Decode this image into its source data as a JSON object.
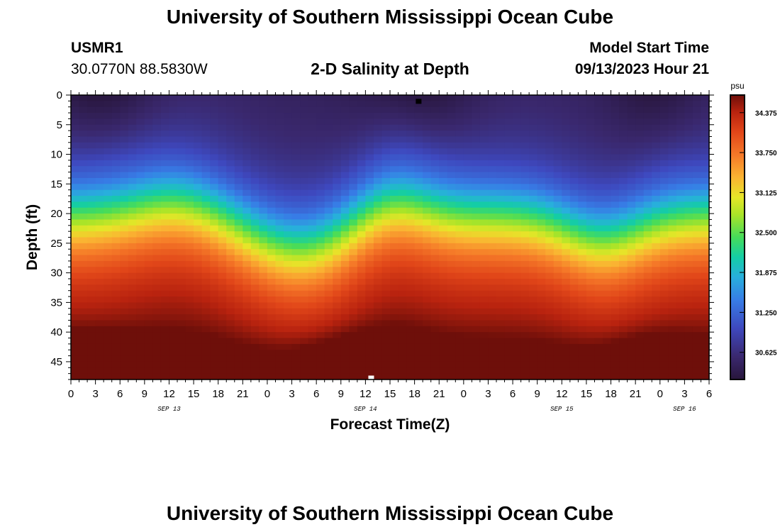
{
  "header": {
    "title": "University of Southern Mississippi Ocean Cube",
    "station": "USMR1",
    "coords": "30.0770N  88.5830W",
    "subtitle": "2-D Salinity at Depth",
    "start_label": "Model Start Time",
    "start_value": "09/13/2023 Hour 21"
  },
  "footer": {
    "title": "University of Southern Mississippi Ocean Cube"
  },
  "chart_data": {
    "type": "heatmap",
    "title": "2-D Salinity at Depth",
    "xlabel": "Forecast Time(Z)",
    "ylabel": "Depth (ft)",
    "x_range_hours": [
      0,
      78
    ],
    "y_range_ft": [
      0,
      48
    ],
    "x_tick_labels": [
      "0",
      "3",
      "6",
      "9",
      "12",
      "15",
      "18",
      "21",
      "0",
      "3",
      "6",
      "9",
      "12",
      "15",
      "18",
      "21",
      "0",
      "3",
      "6",
      "9",
      "12",
      "15",
      "18",
      "21",
      "0",
      "3",
      "6"
    ],
    "x_tick_hours": [
      0,
      3,
      6,
      9,
      12,
      15,
      18,
      21,
      24,
      27,
      30,
      33,
      36,
      39,
      42,
      45,
      48,
      51,
      54,
      57,
      60,
      63,
      66,
      69,
      72,
      75,
      78
    ],
    "day_labels": [
      {
        "text": "SEP 13",
        "hour": 12
      },
      {
        "text": "SEP 14",
        "hour": 36
      },
      {
        "text": "SEP 15",
        "hour": 60
      },
      {
        "text": "SEP 16",
        "hour": 75
      }
    ],
    "y_ticks": [
      0,
      5,
      10,
      15,
      20,
      25,
      30,
      35,
      40,
      45
    ],
    "colorbar": {
      "unit": "psu",
      "min": 30.2,
      "max": 34.65,
      "tick_values": [
        34.375,
        33.75,
        33.125,
        32.5,
        31.875,
        31.25,
        30.625
      ],
      "tick_labels": [
        "34.375",
        "33.750",
        "33.125",
        "32.500",
        "31.875",
        "31.250",
        "30.625"
      ]
    },
    "surface_min_hours": [
      4,
      18,
      42.5,
      72
    ],
    "surface_max_hours": [
      1,
      12,
      36,
      60,
      72
    ],
    "markers": [
      {
        "name": "min-marker",
        "hour": 42.5,
        "depth": 1,
        "color": "#000000"
      },
      {
        "name": "max-marker",
        "hour": 36.7,
        "depth": 47.7,
        "color": "#ffffff"
      }
    ]
  }
}
